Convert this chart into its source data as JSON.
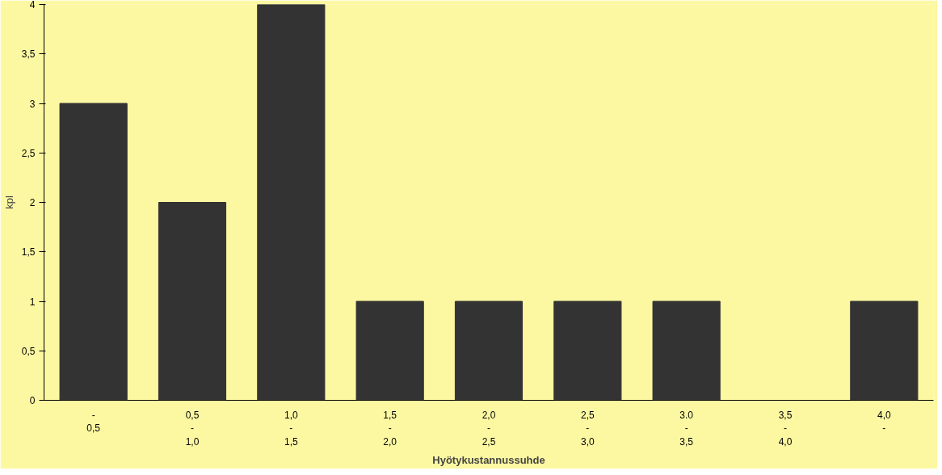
{
  "chart_data": {
    "type": "bar",
    "xlabel": "Hyötykustannussuhde",
    "ylabel": "kpl",
    "categories": [
      "-\n0,5",
      "0,5\n-\n1,0",
      "1,0\n-\n1,5",
      "1,5\n-\n2,0",
      "2,0\n-\n2,5",
      "2,5\n-\n3,0",
      "3.0\n-\n3,5",
      "3,5\n-\n4,0",
      "4,0\n-"
    ],
    "values": [
      3,
      2,
      4,
      1,
      1,
      1,
      1,
      0,
      1
    ],
    "color": "#333333",
    "ylim": [
      0,
      4
    ],
    "yticks": [
      0,
      {
        "value": 0.5,
        "label": "0,5"
      },
      1,
      {
        "value": 1.5,
        "label": "1,5"
      },
      2,
      {
        "value": 2.5,
        "label": "2,5"
      },
      3,
      {
        "value": 3.5,
        "label": "3,5"
      },
      4
    ],
    "grid": false
  }
}
